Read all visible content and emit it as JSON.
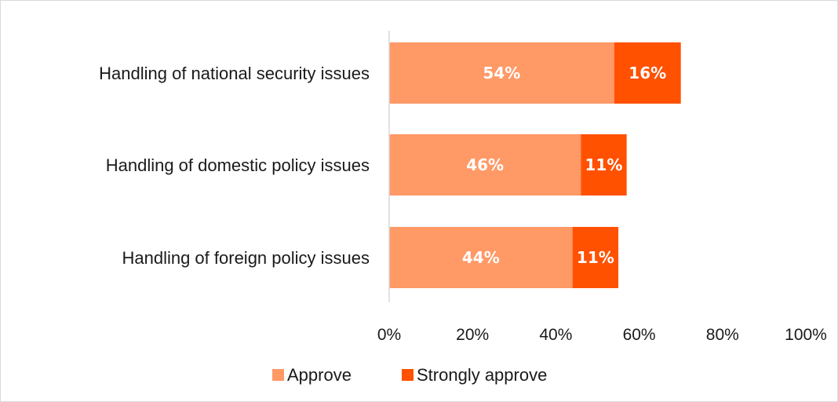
{
  "chart_data": {
    "type": "bar",
    "orientation": "horizontal",
    "stacked": true,
    "categories": [
      "Handling of national security issues",
      "Handling of domestic policy issues",
      "Handling of foreign policy issues"
    ],
    "series": [
      {
        "name": "Approve",
        "values": [
          54,
          46,
          44
        ],
        "labels": [
          "54%",
          "46%",
          "44%"
        ],
        "color": "#FF9966"
      },
      {
        "name": "Strongly approve",
        "values": [
          16,
          11,
          11
        ],
        "labels": [
          "16%",
          "11%",
          "11%"
        ],
        "color": "#FF5100"
      }
    ],
    "xlim": [
      0,
      100
    ],
    "xticks": [
      "0%",
      "20%",
      "40%",
      "60%",
      "80%",
      "100%"
    ],
    "grid": false,
    "legend": "bottom"
  }
}
